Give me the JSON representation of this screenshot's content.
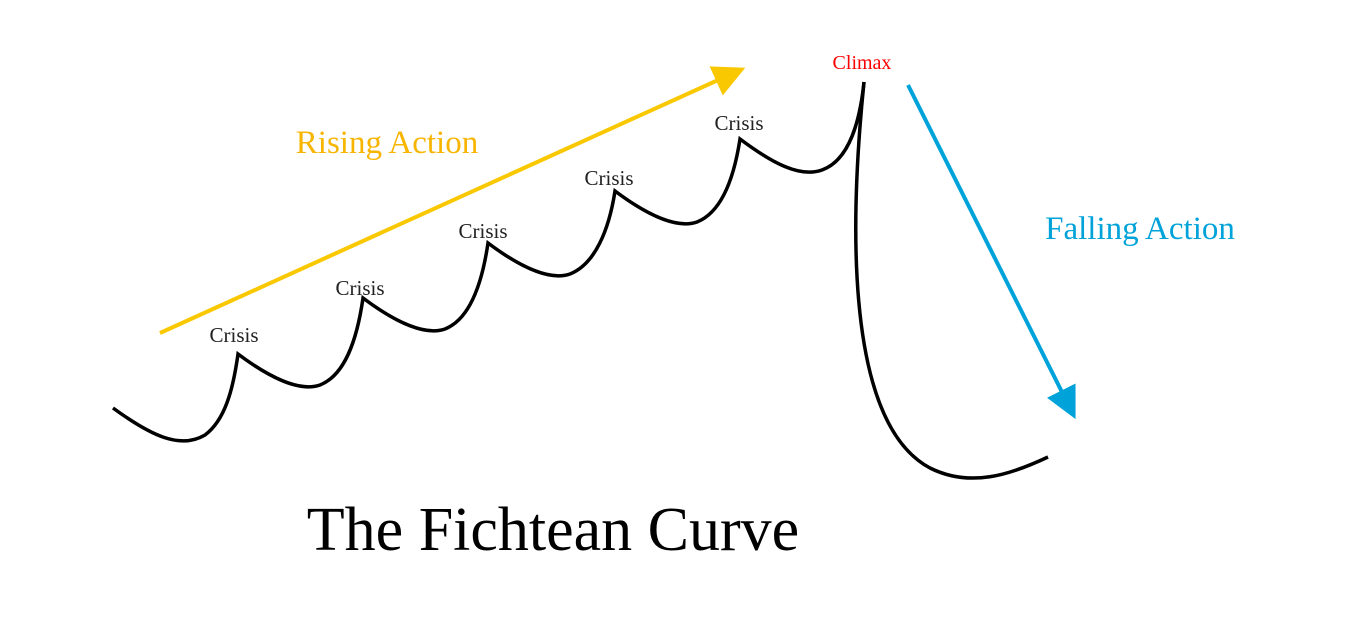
{
  "title": "The Fichtean Curve",
  "labels": {
    "rising_action": "Rising Action",
    "falling_action": "Falling Action",
    "climax": "Climax",
    "crises": [
      "Crisis",
      "Crisis",
      "Crisis",
      "Crisis",
      "Crisis"
    ]
  },
  "colors": {
    "rising_action": "#f7b500",
    "rising_arrow": "#f9c800",
    "falling_action": "#00a3d9",
    "climax": "#ff0000",
    "curve": "#000000"
  }
}
